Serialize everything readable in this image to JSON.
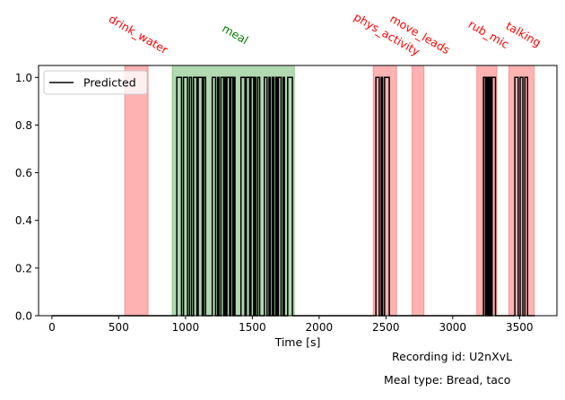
{
  "chart_data": {
    "type": "line",
    "xlabel": "Time [s]",
    "ylabel": "",
    "xlim": [
      -100,
      3780
    ],
    "ylim": [
      0,
      1.05
    ],
    "xticks": [
      0,
      500,
      1000,
      1500,
      2000,
      2500,
      3000,
      3500
    ],
    "xtick_labels": [
      "0",
      "500",
      "1000",
      "1500",
      "2000",
      "2500",
      "3000",
      "3500"
    ],
    "yticks": [
      0.0,
      0.2,
      0.4,
      0.6,
      0.8,
      1.0
    ],
    "ytick_labels": [
      "0.0",
      "0.2",
      "0.4",
      "0.6",
      "0.8",
      "1.0"
    ],
    "grid": false,
    "legend": {
      "location": "top-left",
      "entries": [
        "Predicted"
      ]
    },
    "series": [
      {
        "name": "Predicted",
        "color": "#000000",
        "high_segments": [
          [
            935,
            970
          ],
          [
            985,
            1015
          ],
          [
            1030,
            1045
          ],
          [
            1060,
            1085
          ],
          [
            1095,
            1125
          ],
          [
            1135,
            1150
          ],
          [
            1200,
            1225
          ],
          [
            1240,
            1250
          ],
          [
            1265,
            1285
          ],
          [
            1295,
            1300
          ],
          [
            1310,
            1330
          ],
          [
            1340,
            1355
          ],
          [
            1365,
            1370
          ],
          [
            1415,
            1445
          ],
          [
            1455,
            1480
          ],
          [
            1490,
            1510
          ],
          [
            1520,
            1525
          ],
          [
            1540,
            1555
          ],
          [
            1590,
            1610
          ],
          [
            1625,
            1635
          ],
          [
            1650,
            1660
          ],
          [
            1675,
            1685
          ],
          [
            1695,
            1715
          ],
          [
            1730,
            1740
          ],
          [
            1765,
            1800
          ],
          [
            2425,
            2450
          ],
          [
            2465,
            2475
          ],
          [
            2490,
            2525
          ],
          [
            3230,
            3245
          ],
          [
            3255,
            3265
          ],
          [
            3275,
            3285
          ],
          [
            3295,
            3320
          ],
          [
            3465,
            3490
          ],
          [
            3505,
            3525
          ],
          [
            3540,
            3560
          ]
        ],
        "x_start": 0,
        "x_end": 3615
      }
    ],
    "event_regions": [
      {
        "label": "drink_water",
        "start": 545,
        "end": 720,
        "color": "#ff0000",
        "label_color": "#ff0000"
      },
      {
        "label": "meal",
        "start": 900,
        "end": 1815,
        "color": "#008000",
        "label_color": "#008000"
      },
      {
        "label": "phys_activity",
        "start": 2405,
        "end": 2580,
        "color": "#ff0000",
        "label_color": "#ff0000"
      },
      {
        "label": "move_leads",
        "start": 2695,
        "end": 2785,
        "color": "#ff0000",
        "label_color": "#ff0000"
      },
      {
        "label": "rub_mic",
        "start": 3180,
        "end": 3330,
        "color": "#ff0000",
        "label_color": "#ff0000"
      },
      {
        "label": "talking",
        "start": 3420,
        "end": 3610,
        "color": "#ff0000",
        "label_color": "#ff0000"
      }
    ]
  },
  "annotations": {
    "recording": "Recording id: U2nXvL",
    "meal_type": "Meal type: Bread, taco"
  }
}
